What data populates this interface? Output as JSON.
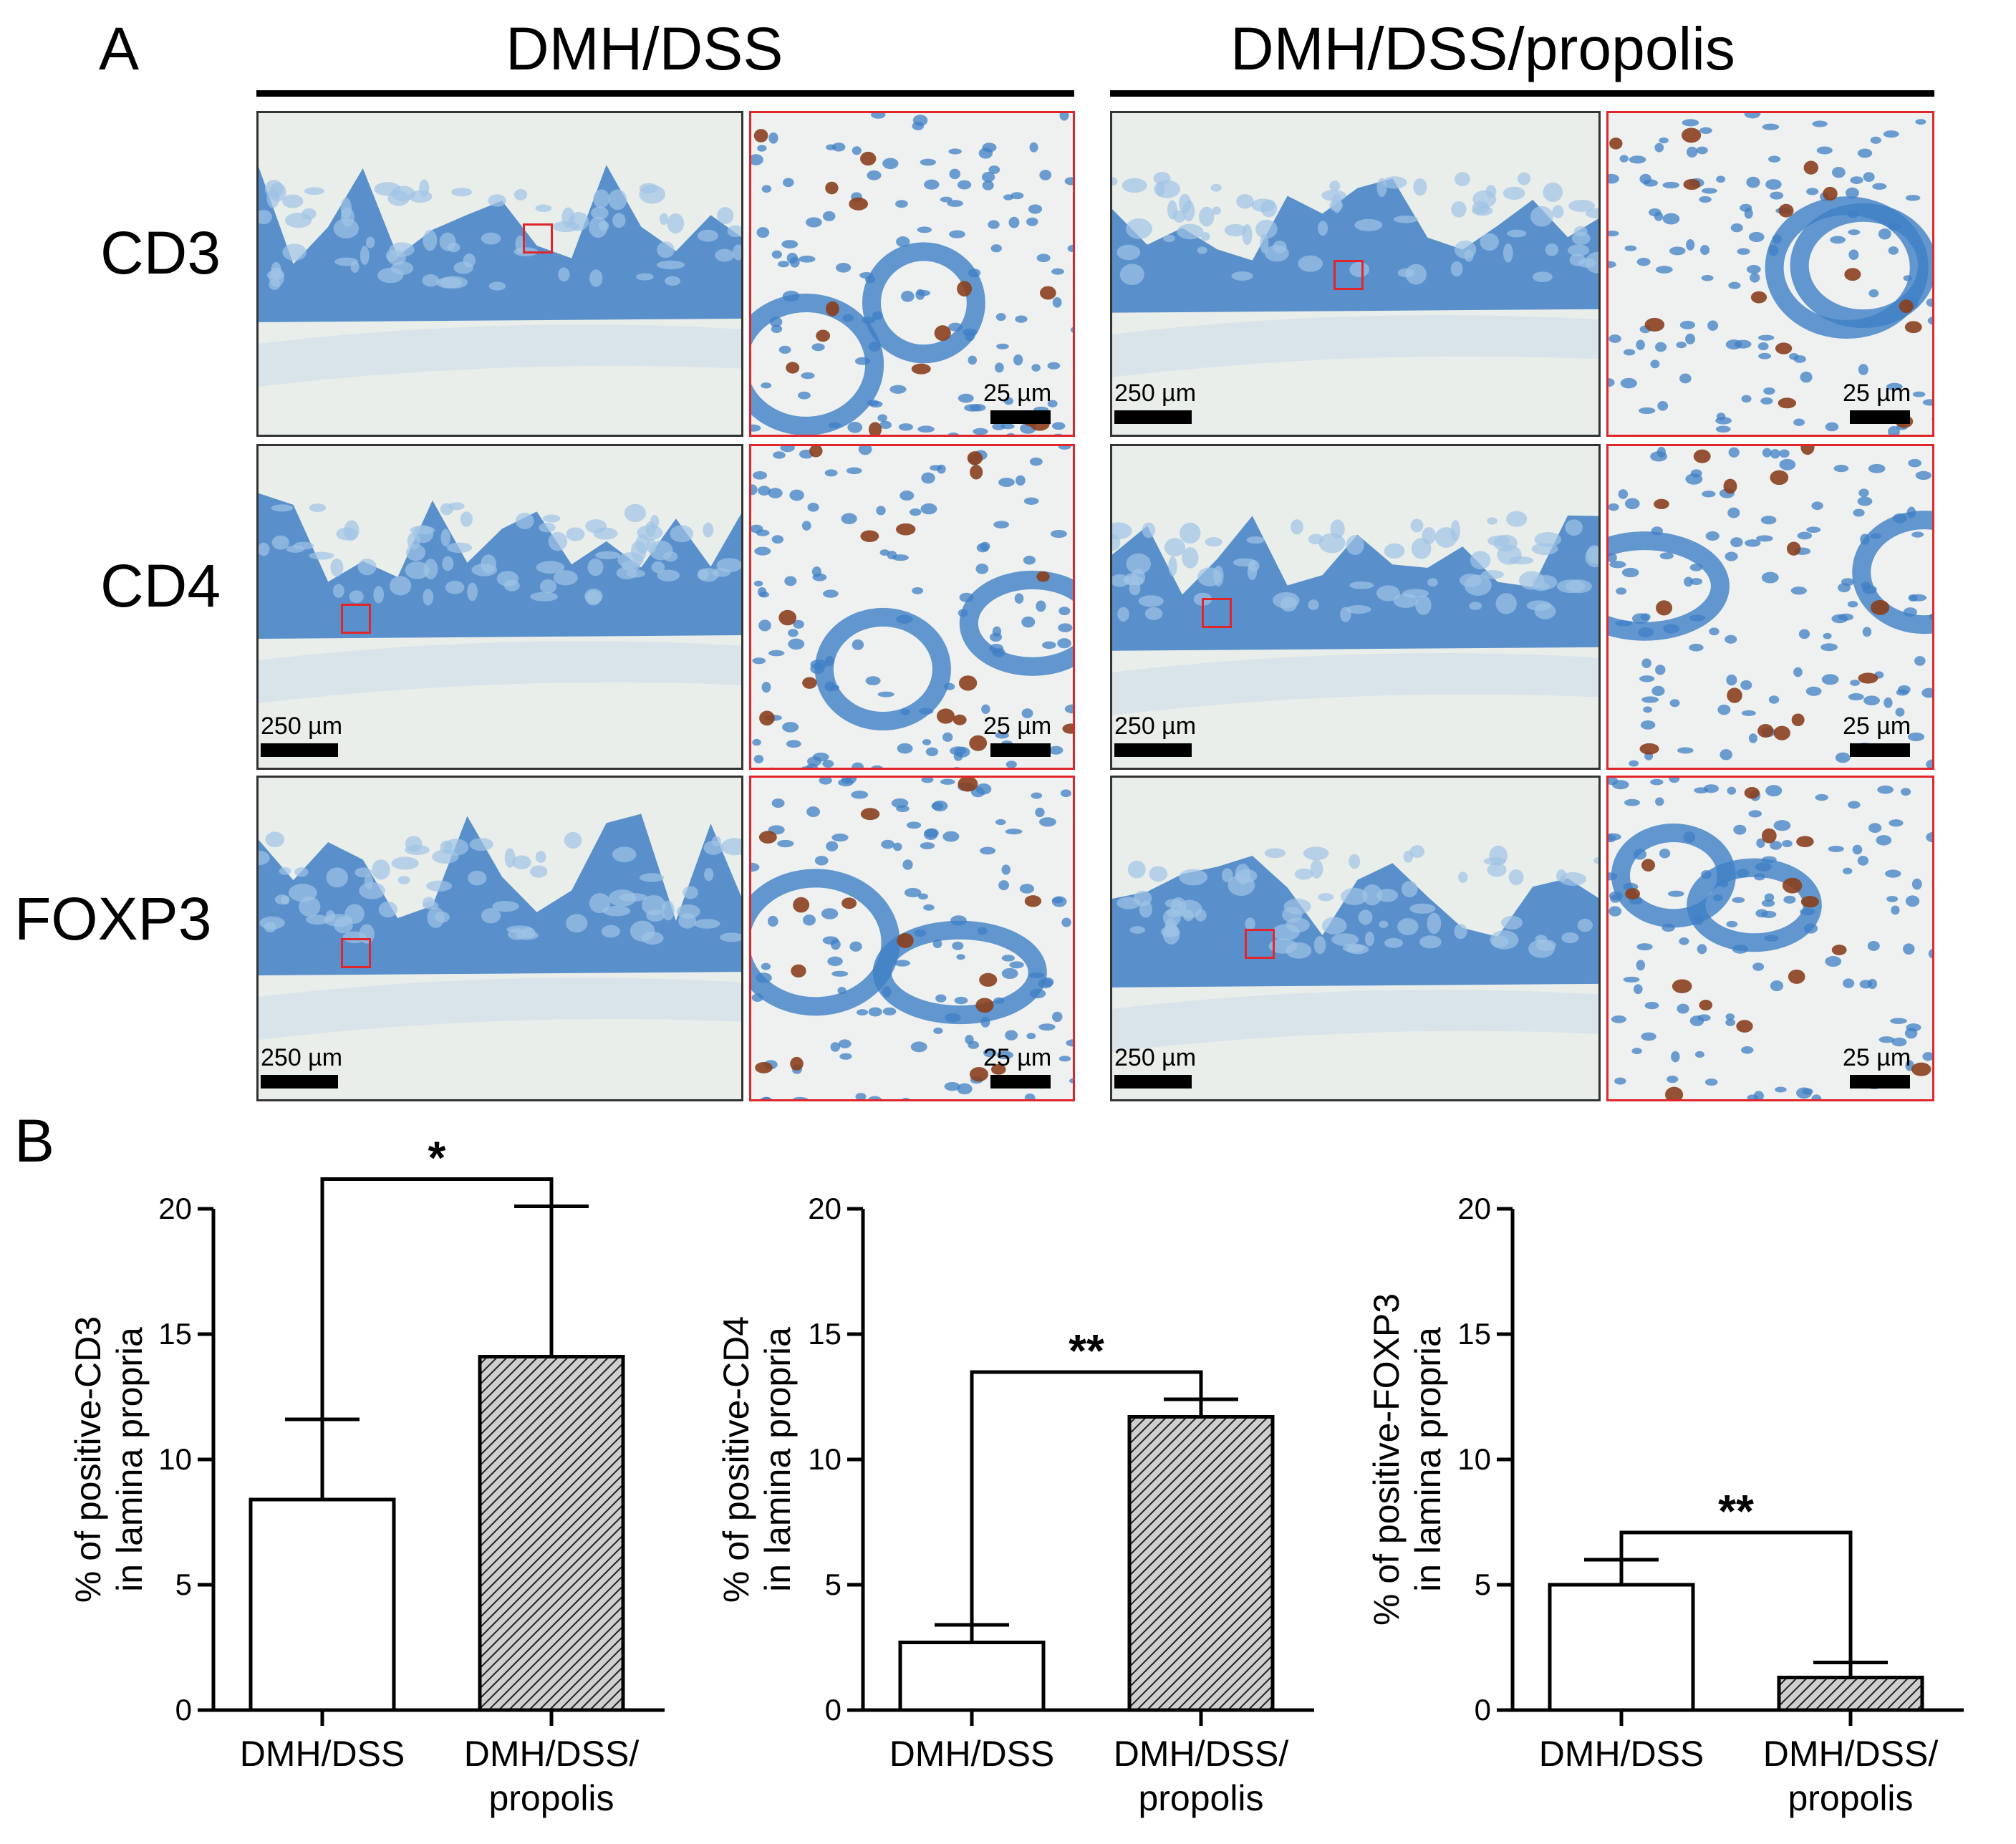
{
  "panel_a": {
    "letter": "A",
    "groups": [
      {
        "title": "DMH/DSS"
      },
      {
        "title": "DMH/DSS/propolis"
      }
    ],
    "rows": [
      {
        "label": "CD3"
      },
      {
        "label": "CD4"
      },
      {
        "label": "FOXP3"
      }
    ],
    "scale_low": "250 µm",
    "scale_high": "25 µm"
  },
  "panel_b": {
    "letter": "B"
  },
  "colors": {
    "tissue_blue": "#3f7fc6",
    "background": "#e9eeea",
    "dab_brown": "#8a3f1e",
    "inset_border": "#e1262b"
  },
  "chart_data": [
    {
      "type": "bar",
      "categories": [
        "DMH/DSS",
        "DMH/DSS/\npropolis"
      ],
      "values": [
        8.4,
        14.1
      ],
      "error": [
        3.2,
        6.0
      ],
      "ylabel": "% of positive-CD3\nin lamina propria",
      "ylim": [
        0,
        20
      ],
      "yticks": [
        "0",
        "5",
        "10",
        "15",
        "20"
      ],
      "significance": "*"
    },
    {
      "type": "bar",
      "categories": [
        "DMH/DSS",
        "DMH/DSS/\npropolis"
      ],
      "values": [
        2.7,
        11.7
      ],
      "error": [
        0.7,
        0.7
      ],
      "ylabel": "% of positive-CD4\nin lamina propria",
      "ylim": [
        0,
        20
      ],
      "yticks": [
        "0",
        "5",
        "10",
        "15",
        "20"
      ],
      "significance": "**"
    },
    {
      "type": "bar",
      "categories": [
        "DMH/DSS",
        "DMH/DSS/\npropolis"
      ],
      "values": [
        5.0,
        1.3
      ],
      "error": [
        1.0,
        0.6
      ],
      "ylabel": "% of positive-FOXP3\nin lamina propria",
      "ylim": [
        0,
        20
      ],
      "yticks": [
        "0",
        "5",
        "10",
        "15",
        "20"
      ],
      "significance": "**"
    }
  ]
}
